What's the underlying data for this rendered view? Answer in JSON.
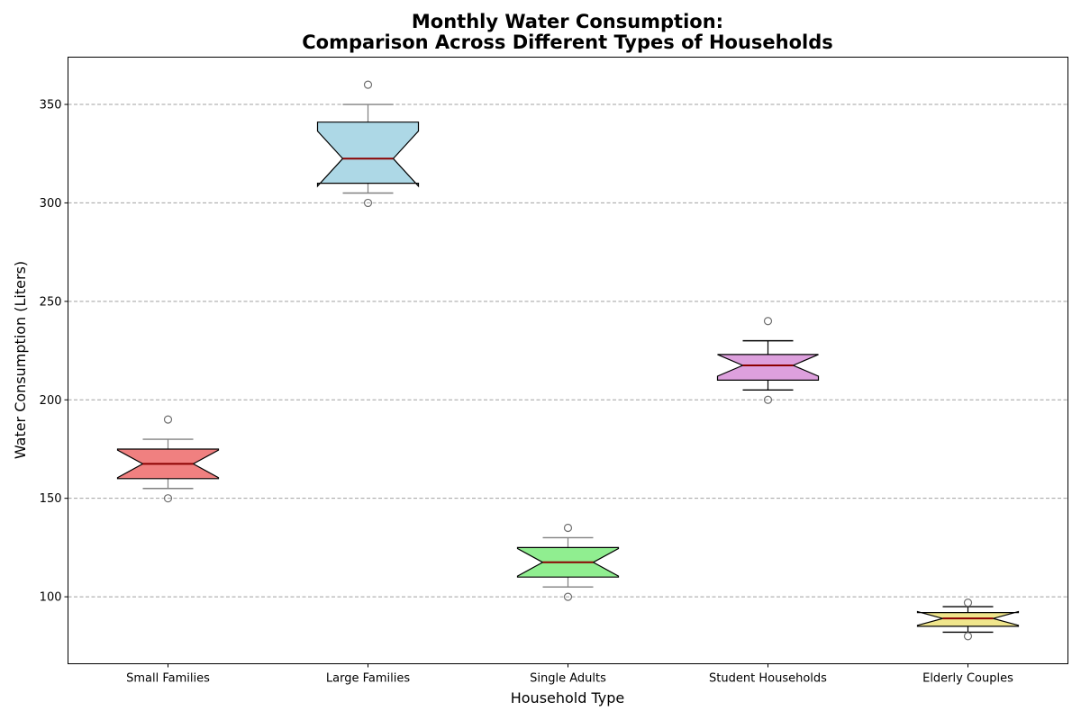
{
  "chart_data": {
    "type": "box",
    "title_lines": [
      "Monthly Water Consumption:",
      "Comparison Across Different Types of Households"
    ],
    "xlabel": "Household Type",
    "ylabel": "Water Consumption (Liters)",
    "ylim": [
      66,
      374
    ],
    "yticks": [
      100,
      150,
      200,
      250,
      300,
      350
    ],
    "grid": "y",
    "notched": true,
    "median_color": "#8b0000",
    "categories": [
      {
        "name": "Small Families",
        "color": "#f08080",
        "whisker_color": "#808080",
        "q1": 160,
        "median": 167.5,
        "q3": 175,
        "notch_low": 160.5,
        "notch_high": 174.5,
        "whisker_low": 155,
        "whisker_high": 180,
        "outliers": [
          150,
          190
        ]
      },
      {
        "name": "Large Families",
        "color": "#add8e6",
        "whisker_color": "#808080",
        "q1": 310,
        "median": 322.5,
        "q3": 341,
        "notch_low": 308.5,
        "notch_high": 336.5,
        "whisker_low": 305,
        "whisker_high": 350,
        "outliers": [
          300,
          360
        ]
      },
      {
        "name": "Single Adults",
        "color": "#90ee90",
        "whisker_color": "#808080",
        "q1": 110,
        "median": 117.5,
        "q3": 125,
        "notch_low": 110.5,
        "notch_high": 124.5,
        "whisker_low": 105,
        "whisker_high": 130,
        "outliers": [
          100,
          135
        ]
      },
      {
        "name": "Student Households",
        "color": "#dda0dd",
        "whisker_color": "#000000",
        "q1": 210,
        "median": 217.5,
        "q3": 223,
        "notch_low": 212,
        "notch_high": 223,
        "whisker_low": 205,
        "whisker_high": 230,
        "outliers": [
          200,
          240
        ]
      },
      {
        "name": "Elderly Couples",
        "color": "#f0e68c",
        "whisker_color": "#000000",
        "q1": 85,
        "median": 89,
        "q3": 92,
        "notch_low": 85.5,
        "notch_high": 92.5,
        "whisker_low": 82,
        "whisker_high": 95,
        "outliers": [
          80,
          97
        ]
      }
    ]
  }
}
